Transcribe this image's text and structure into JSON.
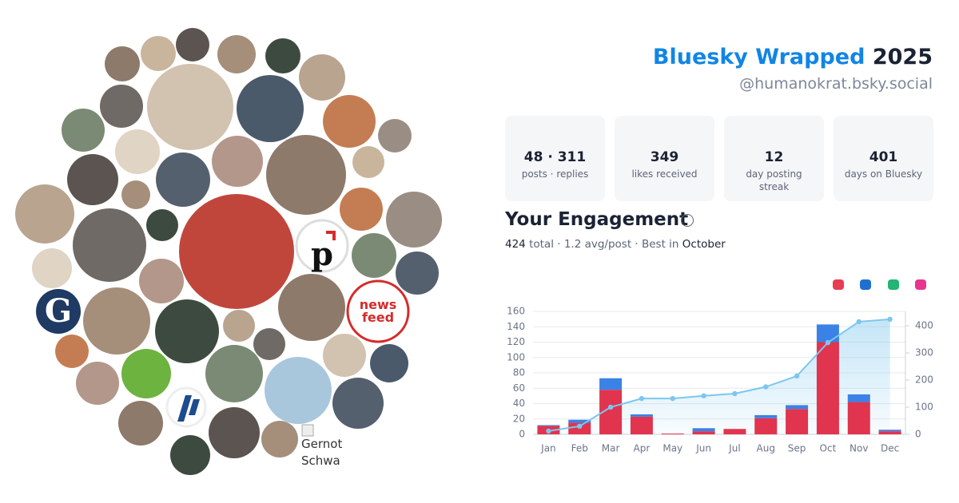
{
  "header": {
    "title": "Bluesky Wrapped",
    "year": "2025",
    "handle": "@humanokrat.bsky.social"
  },
  "stats": [
    {
      "value": "48 · 311",
      "label": "posts · replies"
    },
    {
      "value": "349",
      "label": "likes received"
    },
    {
      "value": "12",
      "label": "day posting streak"
    },
    {
      "value": "401",
      "label": "days on Bluesky"
    }
  ],
  "engagement": {
    "title": "Your Engagement",
    "total": "424",
    "summary": "total · 1.2 avg/post · Best in",
    "best": "October"
  },
  "avatar_texts": {
    "logo_p": "p",
    "logo_news": "news feed",
    "logo_g": "G",
    "broken_alt": "Gernot Schwa"
  },
  "chart_data": {
    "type": "bar",
    "categories": [
      "Jan",
      "Feb",
      "Mar",
      "Apr",
      "May",
      "Jun",
      "Jul",
      "Aug",
      "Sep",
      "Oct",
      "Nov",
      "Dec"
    ],
    "series": [
      {
        "color": "#e0344f",
        "values": [
          11,
          15,
          58,
          23,
          1,
          4,
          7,
          21,
          33,
          120,
          42,
          4
        ]
      },
      {
        "color": "#3b82e6",
        "values": [
          1,
          4,
          15,
          3,
          0,
          4,
          0,
          4,
          5,
          23,
          10,
          2
        ]
      },
      {
        "color": "#7cc6ee",
        "axis": "y2",
        "type": "line",
        "values": [
          12,
          30,
          100,
          132,
          132,
          142,
          150,
          175,
          215,
          338,
          415,
          424
        ]
      }
    ],
    "stacked": true,
    "ylim": [
      0,
      160
    ],
    "yticks": [
      0,
      20,
      40,
      60,
      80,
      100,
      120,
      140,
      160
    ],
    "y2lim": [
      0,
      453
    ],
    "y2ticks": [
      0,
      100,
      200,
      300,
      400
    ],
    "grid": true
  }
}
